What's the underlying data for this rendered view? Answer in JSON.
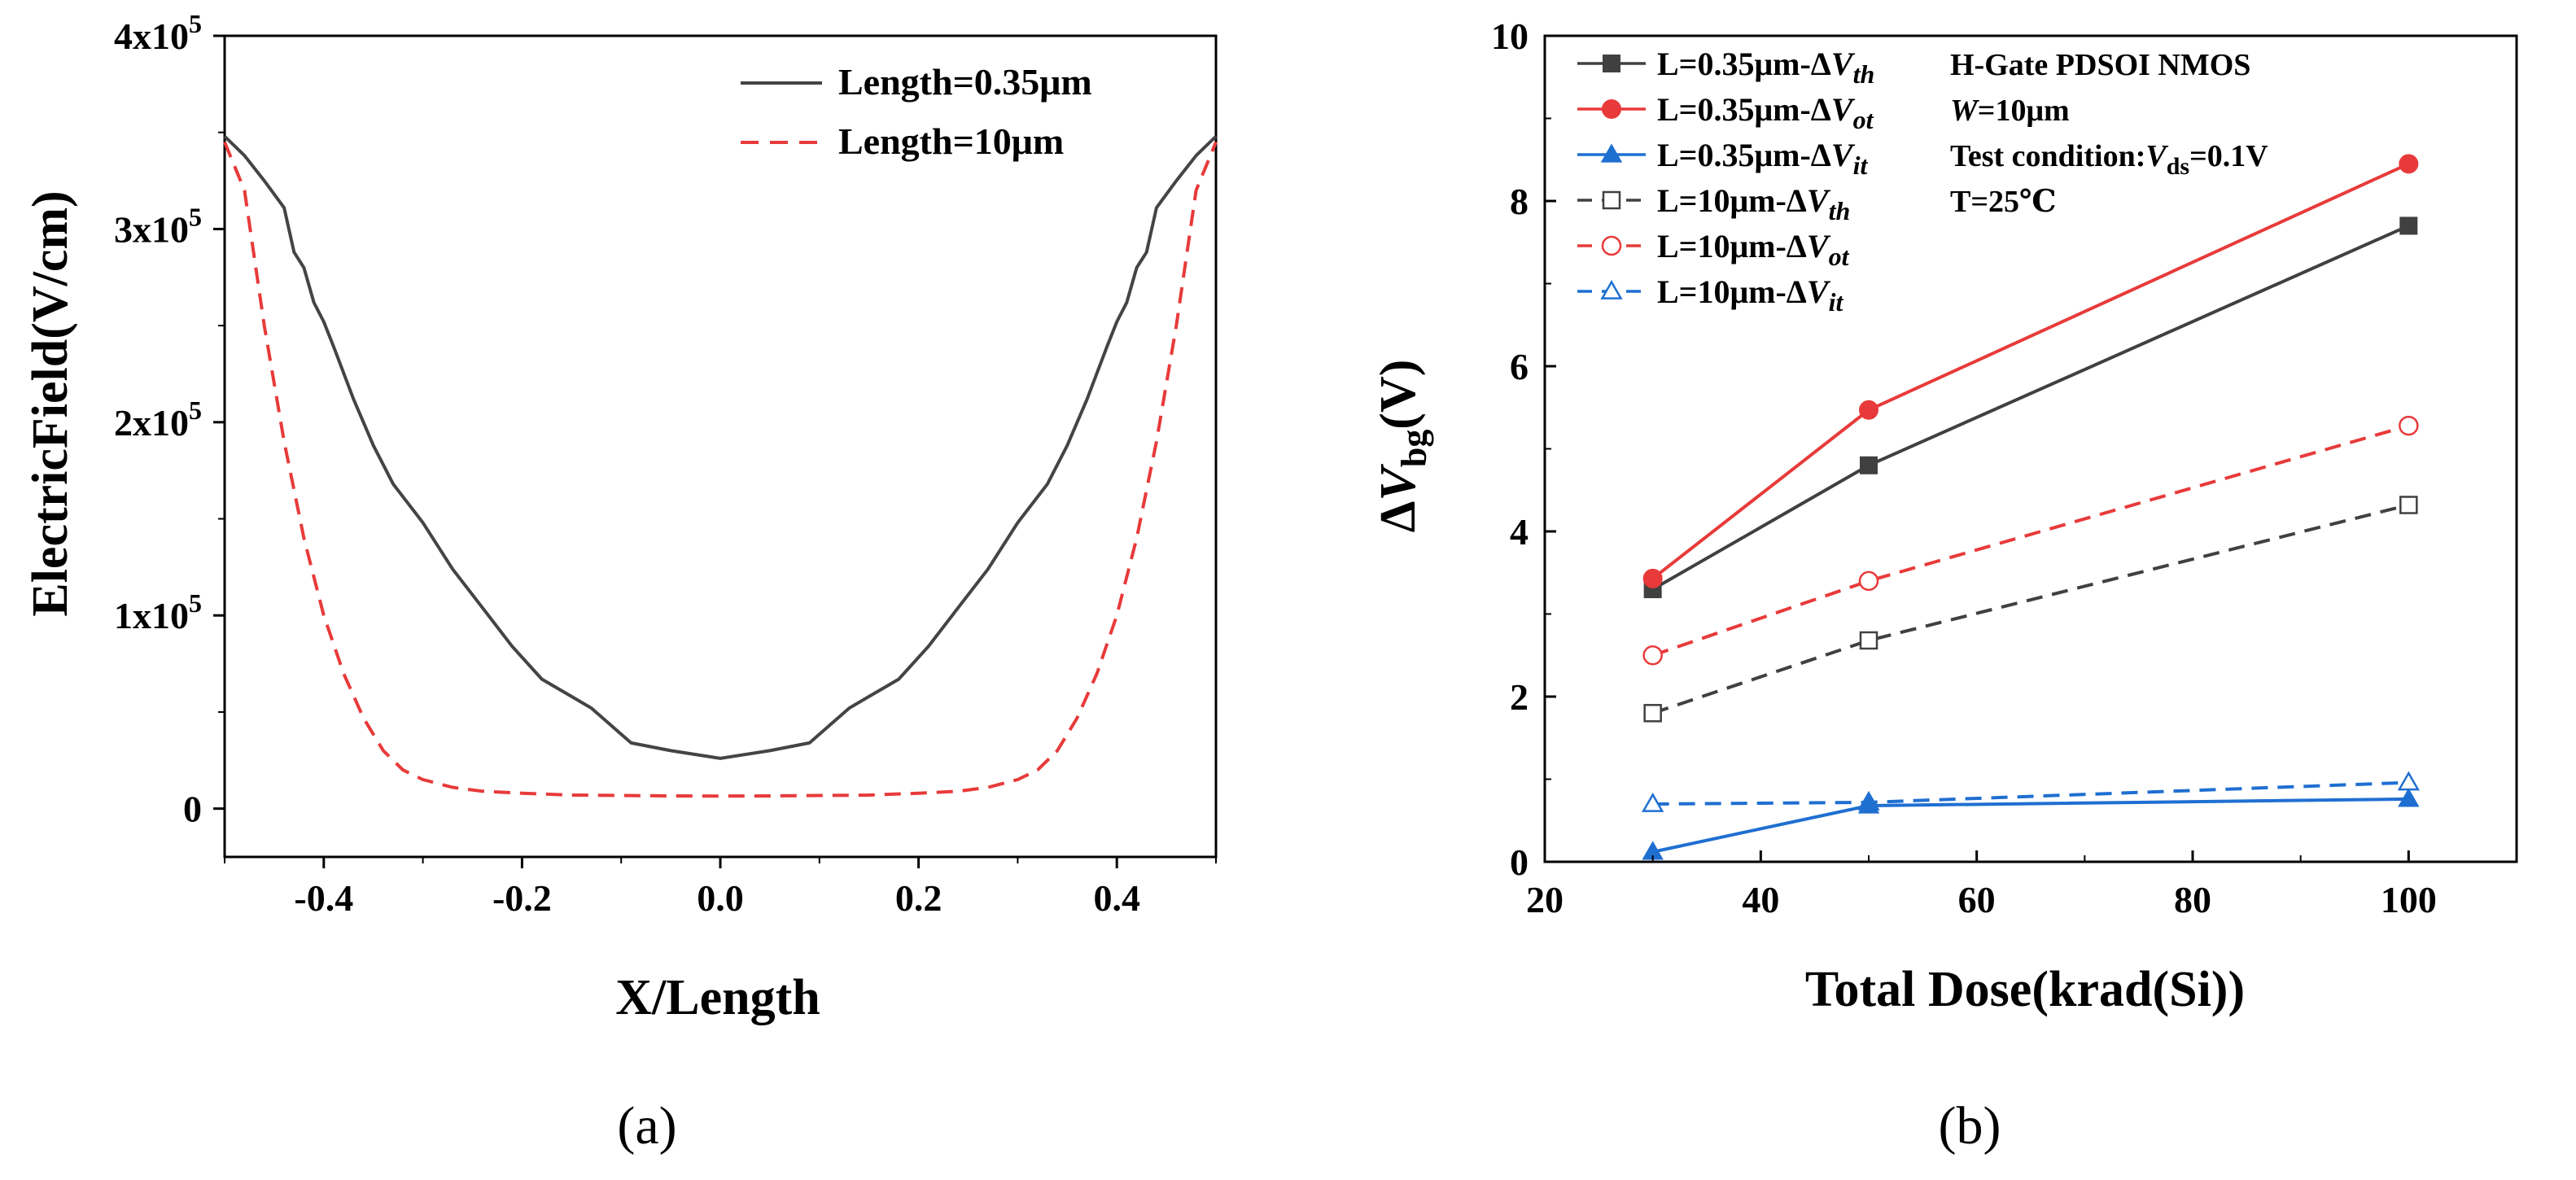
{
  "chart_data": [
    {
      "panel": "(a)",
      "type": "line",
      "xlabel": "X/Length",
      "ylabel": "ElectricField(V/cm)",
      "xlim": [
        -0.5,
        0.5
      ],
      "ylim": [
        -25000,
        400000
      ],
      "x_ticks": [
        {
          "value": -0.4,
          "label": "-0.4"
        },
        {
          "value": -0.2,
          "label": "-0.2"
        },
        {
          "value": 0.0,
          "label": "0.0"
        },
        {
          "value": 0.2,
          "label": "0.2"
        },
        {
          "value": 0.4,
          "label": "0.4"
        }
      ],
      "y_ticks": [
        {
          "value": 0,
          "label": "0",
          "exp": ""
        },
        {
          "value": 100000,
          "label": "1x10",
          "exp": "5"
        },
        {
          "value": 200000,
          "label": "2x10",
          "exp": "5"
        },
        {
          "value": 300000,
          "label": "3x10",
          "exp": "5"
        },
        {
          "value": 400000,
          "label": "4x10",
          "exp": "5"
        }
      ],
      "legend_position": "top-right",
      "series": [
        {
          "name": "Length=0.35μm",
          "color": "#444444",
          "dash": "solid",
          "x": [
            -0.5,
            -0.48,
            -0.46,
            -0.44,
            -0.43,
            -0.42,
            -0.41,
            -0.4,
            -0.39,
            -0.37,
            -0.35,
            -0.33,
            -0.3,
            -0.27,
            -0.24,
            -0.21,
            -0.18,
            -0.15,
            -0.13,
            -0.09,
            -0.05,
            0.0,
            0.05,
            0.09,
            0.13,
            0.15,
            0.18,
            0.21,
            0.24,
            0.27,
            0.3,
            0.33,
            0.35,
            0.37,
            0.39,
            0.4,
            0.41,
            0.42,
            0.43,
            0.44,
            0.46,
            0.48,
            0.5
          ],
          "values": [
            348000,
            338000,
            325000,
            311000,
            288000,
            280000,
            262000,
            252000,
            239000,
            212000,
            188000,
            168000,
            148000,
            124000,
            104000,
            84000,
            67000,
            58000,
            52000,
            34000,
            30000,
            26000,
            30000,
            34000,
            52000,
            58000,
            67000,
            84000,
            104000,
            124000,
            148000,
            168000,
            188000,
            212000,
            239000,
            252000,
            262000,
            280000,
            288000,
            311000,
            325000,
            338000,
            348000
          ]
        },
        {
          "name": "Length=10μm",
          "color": "#e83a3a",
          "dash": "dashed",
          "x": [
            -0.5,
            -0.48,
            -0.46,
            -0.44,
            -0.42,
            -0.4,
            -0.38,
            -0.36,
            -0.34,
            -0.32,
            -0.3,
            -0.27,
            -0.24,
            -0.2,
            -0.15,
            -0.1,
            -0.05,
            0.0,
            0.05,
            0.1,
            0.15,
            0.2,
            0.24,
            0.27,
            0.3,
            0.32,
            0.34,
            0.36,
            0.38,
            0.4,
            0.42,
            0.44,
            0.46,
            0.48,
            0.5
          ],
          "values": [
            345000,
            320000,
            250000,
            190000,
            140000,
            100000,
            70000,
            47000,
            30000,
            20000,
            15000,
            11000,
            9000,
            8000,
            7000,
            6800,
            6600,
            6500,
            6600,
            6800,
            7000,
            8000,
            9000,
            11000,
            15000,
            20000,
            30000,
            47000,
            70000,
            100000,
            140000,
            190000,
            250000,
            320000,
            345000
          ]
        }
      ]
    },
    {
      "panel": "(b)",
      "type": "line",
      "xlabel": "Total Dose(krad(Si))",
      "ylabel": "ΔVbg(V)",
      "ylabel_parts": {
        "delta": "Δ",
        "var": "V",
        "sub": "bg",
        "unit": "(V)"
      },
      "xlim": [
        20,
        110
      ],
      "ylim": [
        0,
        10
      ],
      "x_ticks": [
        {
          "value": 20,
          "label": "20"
        },
        {
          "value": 40,
          "label": "40"
        },
        {
          "value": 60,
          "label": "60"
        },
        {
          "value": 80,
          "label": "80"
        },
        {
          "value": 100,
          "label": "100"
        }
      ],
      "y_ticks": [
        {
          "value": 0,
          "label": "0"
        },
        {
          "value": 2,
          "label": "2"
        },
        {
          "value": 4,
          "label": "4"
        },
        {
          "value": 6,
          "label": "6"
        },
        {
          "value": 8,
          "label": "8"
        },
        {
          "value": 10,
          "label": "10"
        }
      ],
      "legend_position": "top-left",
      "annotations": [
        "H-Gate PDSOI NMOS",
        "W=10μm",
        "Test condition:Vds=0.1V",
        "T=25℃"
      ],
      "annotation_parts": {
        "w_var": "W",
        "w_rest": "=10μm",
        "test_prefix": "Test condition:",
        "test_var": "V",
        "test_sub": "ds",
        "test_rest": "=0.1V"
      },
      "x": [
        30,
        50,
        100
      ],
      "series": [
        {
          "name": "L=0.35μm-ΔVth",
          "prefix": "L=0.35μm-Δ",
          "var": "V",
          "sub": "th",
          "color": "#404040",
          "dash": "solid",
          "marker": "square",
          "filled": true,
          "values": [
            3.3,
            4.8,
            7.7
          ]
        },
        {
          "name": "L=0.35μm-ΔVot",
          "prefix": "L=0.35μm-Δ",
          "var": "V",
          "sub": "ot",
          "color": "#e83a3a",
          "dash": "solid",
          "marker": "circle",
          "filled": true,
          "values": [
            3.43,
            5.47,
            8.45
          ]
        },
        {
          "name": "L=0.35μm-ΔVit",
          "prefix": "L=0.35μm-Δ",
          "var": "V",
          "sub": "it",
          "color": "#1f6fd1",
          "dash": "solid",
          "marker": "triangle",
          "filled": true,
          "values": [
            0.12,
            0.68,
            0.76
          ]
        },
        {
          "name": "L=10μm-ΔVth",
          "prefix": "L=10μm-Δ",
          "var": "V",
          "sub": "th",
          "color": "#404040",
          "dash": "dashed",
          "marker": "square",
          "filled": false,
          "values": [
            1.8,
            2.68,
            4.32
          ]
        },
        {
          "name": "L=10μm-ΔVot",
          "prefix": "L=10μm-Δ",
          "var": "V",
          "sub": "ot",
          "color": "#e83a3a",
          "dash": "dashed",
          "marker": "circle",
          "filled": false,
          "values": [
            2.5,
            3.4,
            5.28
          ]
        },
        {
          "name": "L=10μm-ΔVit",
          "prefix": "L=10μm-Δ",
          "var": "V",
          "sub": "it",
          "color": "#1f6fd1",
          "dash": "dashed",
          "marker": "triangle",
          "filled": false,
          "values": [
            0.7,
            0.72,
            0.96
          ]
        }
      ]
    }
  ]
}
